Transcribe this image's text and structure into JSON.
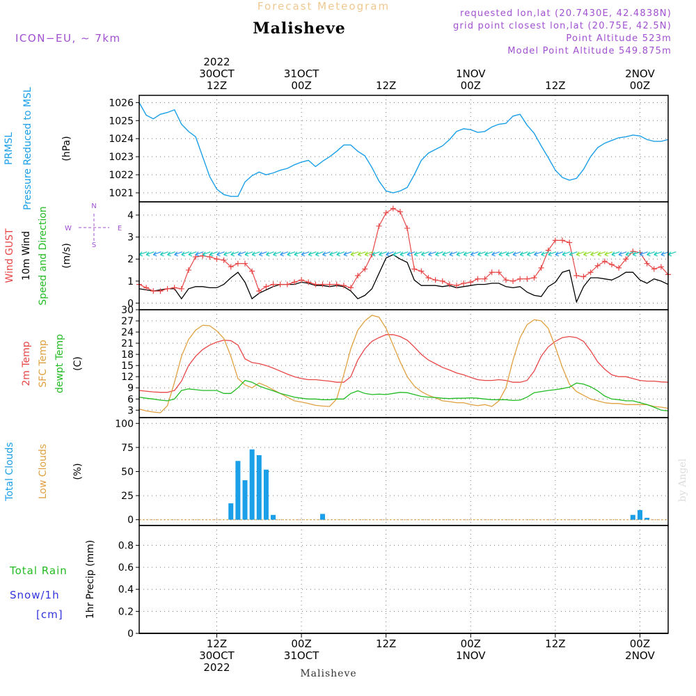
{
  "header": {
    "super_title": "Forecast Meteogram",
    "location": "Malisheve",
    "model": "ICON−EU, ∼ 7km",
    "requested": "requested lon,lat (20.7430E, 42.4838N)",
    "grid_point": "grid point closest lon,lat (20.75E, 42.5N)",
    "point_altitude": "Point Altitude 523m",
    "model_altitude": "Model Point Altitude 549.875m",
    "footer_location": "Malisheve",
    "credit": "by Angel"
  },
  "colors": {
    "pressure": "#1a9fe8",
    "gust": "#e84646",
    "wind": "#000000",
    "temp2m": "#e84646",
    "sfctemp": "#e0a040",
    "dewpt": "#22bb22",
    "clouds_total": "#1a9fe8",
    "clouds_low": "#e0a040",
    "rain": "#22bb22",
    "snow": "#3333dd",
    "meta": "#a050d0",
    "gridline": "#777777"
  },
  "time_axis": {
    "top_labels": [
      {
        "h": 12,
        "lines": [
          "2022",
          "30OCT",
          "12Z"
        ]
      },
      {
        "h": 24,
        "lines": [
          "31OCT",
          "00Z"
        ]
      },
      {
        "h": 36,
        "lines": [
          "12Z"
        ]
      },
      {
        "h": 48,
        "lines": [
          "1NOV",
          "00Z"
        ]
      },
      {
        "h": 60,
        "lines": [
          "12Z"
        ]
      },
      {
        "h": 72,
        "lines": [
          "2NOV",
          "00Z"
        ]
      }
    ],
    "bottom_labels": [
      {
        "h": 12,
        "lines": [
          "12Z",
          "30OCT",
          "2022"
        ]
      },
      {
        "h": 24,
        "lines": [
          "00Z",
          "31OCT"
        ]
      },
      {
        "h": 36,
        "lines": [
          "12Z"
        ]
      },
      {
        "h": 48,
        "lines": [
          "00Z",
          "1NOV"
        ]
      },
      {
        "h": 60,
        "lines": [
          "12Z"
        ]
      },
      {
        "h": 72,
        "lines": [
          "00Z",
          "2NOV"
        ]
      }
    ]
  },
  "panels": [
    {
      "id": "pressure",
      "labels": [
        {
          "text": "PRMSL",
          "color": "pressure"
        },
        {
          "text": "Pressure Reduced to MSL",
          "color": "pressure"
        },
        {
          "text": "(hPa)",
          "color": "wind"
        }
      ]
    },
    {
      "id": "wind",
      "labels": [
        {
          "text": "Wind GUST",
          "color": "gust"
        },
        {
          "text": "10m Wind",
          "color": "wind"
        },
        {
          "text": "Speed and Direction",
          "color": "dewpt"
        },
        {
          "text": "(m/s)",
          "color": "wind"
        }
      ],
      "compass": {
        "n": "N",
        "s": "S",
        "w": "W",
        "e": "E"
      }
    },
    {
      "id": "temp",
      "labels": [
        {
          "text": "2m Temp",
          "color": "temp2m"
        },
        {
          "text": "SFC Temp",
          "color": "sfctemp"
        },
        {
          "text": "dewpt Temp",
          "color": "dewpt"
        },
        {
          "text": "(C)",
          "color": "wind"
        }
      ]
    },
    {
      "id": "clouds",
      "labels": [
        {
          "text": "Total Clouds",
          "color": "clouds_total"
        },
        {
          "text": "Low Clouds",
          "color": "clouds_low"
        },
        {
          "text": "(%)",
          "color": "wind"
        }
      ]
    },
    {
      "id": "precip",
      "labels": [
        {
          "text": "1hr Precip (mm)",
          "color": "wind"
        }
      ],
      "legend": [
        {
          "text": "Total  Rain",
          "color": "rain"
        },
        {
          "text": "Snow/1h",
          "color": "snow"
        },
        {
          "text": "[cm]",
          "color": "snow"
        }
      ]
    }
  ],
  "chart_data": [
    {
      "type": "line",
      "name": "PRMSL",
      "x_unit": "hours from 30OCT 00Z",
      "xlim": [
        1,
        76
      ],
      "ylim": [
        1020.5,
        1026.4
      ],
      "yticks": [
        1021,
        1022,
        1023,
        1024,
        1025,
        1026
      ],
      "x": [
        1,
        2,
        3,
        4,
        5,
        6,
        7,
        8,
        9,
        10,
        11,
        12,
        13,
        14,
        15,
        16,
        17,
        18,
        19,
        20,
        21,
        22,
        23,
        24,
        25,
        26,
        27,
        28,
        29,
        30,
        31,
        32,
        33,
        34,
        35,
        36,
        37,
        38,
        39,
        40,
        41,
        42,
        43,
        44,
        45,
        46,
        47,
        48,
        49,
        50,
        51,
        52,
        53,
        54,
        55,
        56,
        57,
        58,
        59,
        60,
        61,
        62,
        63,
        64,
        65,
        66,
        67,
        68,
        69,
        70,
        71,
        72,
        73,
        74,
        75,
        76
      ],
      "series": [
        {
          "values": [
            1026.0,
            1025.3,
            1025.1,
            1025.35,
            1025.45,
            1025.6,
            1024.8,
            1024.4,
            1024.1,
            1023.0,
            1021.9,
            1021.2,
            1020.9,
            1020.8,
            1020.8,
            1021.6,
            1021.95,
            1022.15,
            1022.0,
            1022.1,
            1022.25,
            1022.35,
            1022.55,
            1022.7,
            1022.8,
            1022.45,
            1022.75,
            1023.0,
            1023.3,
            1023.65,
            1023.65,
            1023.3,
            1023.05,
            1022.4,
            1021.65,
            1021.1,
            1021.0,
            1021.1,
            1021.3,
            1022.0,
            1022.8,
            1023.2,
            1023.4,
            1023.6,
            1023.95,
            1024.4,
            1024.55,
            1024.5,
            1024.35,
            1024.4,
            1024.65,
            1024.8,
            1024.85,
            1025.25,
            1025.35,
            1024.75,
            1024.3,
            1023.6,
            1022.95,
            1022.25,
            1021.85,
            1021.7,
            1021.8,
            1022.3,
            1023.0,
            1023.5,
            1023.75,
            1023.9,
            1024.05,
            1024.1,
            1024.2,
            1024.15,
            1023.95,
            1023.85,
            1023.85,
            1023.95
          ]
        }
      ]
    },
    {
      "type": "line",
      "name": "Wind",
      "xlim": [
        1,
        76
      ],
      "ylim": [
        -0.3,
        4.6
      ],
      "yticks": [
        0,
        1,
        2,
        3,
        4
      ],
      "x": [
        1,
        2,
        3,
        4,
        5,
        6,
        7,
        8,
        9,
        10,
        11,
        12,
        13,
        14,
        15,
        16,
        17,
        18,
        19,
        20,
        21,
        22,
        23,
        24,
        25,
        26,
        27,
        28,
        29,
        30,
        31,
        32,
        33,
        34,
        35,
        36,
        37,
        38,
        39,
        40,
        41,
        42,
        43,
        44,
        45,
        46,
        47,
        48,
        49,
        50,
        51,
        52,
        53,
        54,
        55,
        56,
        57,
        58,
        59,
        60,
        61,
        62,
        63,
        64,
        65,
        66,
        67,
        68,
        69,
        70,
        71,
        72,
        73,
        74,
        75,
        76
      ],
      "series": [
        {
          "name": "Wind GUST",
          "values": [
            0.85,
            0.7,
            0.55,
            0.55,
            0.65,
            0.7,
            0.65,
            1.5,
            2.1,
            2.15,
            2.1,
            2.0,
            1.95,
            1.65,
            1.8,
            1.8,
            1.45,
            0.55,
            0.75,
            0.85,
            0.85,
            0.85,
            0.95,
            1.05,
            0.95,
            0.85,
            0.85,
            0.85,
            0.85,
            0.8,
            0.7,
            1.25,
            1.55,
            2.2,
            3.5,
            4.1,
            4.3,
            4.15,
            3.4,
            1.55,
            1.45,
            1.15,
            1.05,
            1.0,
            0.85,
            0.8,
            0.9,
            0.95,
            1.1,
            1.1,
            1.4,
            1.4,
            1.05,
            1.0,
            1.1,
            1.1,
            1.15,
            1.6,
            2.4,
            2.85,
            2.85,
            2.75,
            1.25,
            1.2,
            1.4,
            1.7,
            1.9,
            1.75,
            1.6,
            2.0,
            2.35,
            2.3,
            1.8,
            1.55,
            1.65,
            1.3
          ]
        },
        {
          "name": "10m Wind",
          "values": [
            0.65,
            0.6,
            0.55,
            0.6,
            0.65,
            0.65,
            0.2,
            0.65,
            0.75,
            0.75,
            0.7,
            0.7,
            0.85,
            1.15,
            1.4,
            0.95,
            0.2,
            0.45,
            0.6,
            0.75,
            0.85,
            0.85,
            0.85,
            0.95,
            0.9,
            0.8,
            0.8,
            0.75,
            0.8,
            0.75,
            0.55,
            0.2,
            0.35,
            0.65,
            1.35,
            2.05,
            2.2,
            2.0,
            1.85,
            1.05,
            0.8,
            0.8,
            0.8,
            0.75,
            0.8,
            0.7,
            0.75,
            0.8,
            0.85,
            0.85,
            0.9,
            0.9,
            0.75,
            0.7,
            0.75,
            0.5,
            0.35,
            0.3,
            0.75,
            0.95,
            1.4,
            1.5,
            0.05,
            0.75,
            1.15,
            1.15,
            1.1,
            1.05,
            1.2,
            1.4,
            1.4,
            1.05,
            0.9,
            1.1,
            1.0,
            0.85
          ]
        }
      ]
    },
    {
      "type": "line",
      "name": "Temperature",
      "xlim": [
        1,
        76
      ],
      "ylim": [
        1,
        30
      ],
      "yticks": [
        3,
        6,
        9,
        12,
        15,
        18,
        21,
        24,
        27,
        30
      ],
      "x": [
        1,
        2,
        3,
        4,
        5,
        6,
        7,
        8,
        9,
        10,
        11,
        12,
        13,
        14,
        15,
        16,
        17,
        18,
        19,
        20,
        21,
        22,
        23,
        24,
        25,
        26,
        27,
        28,
        29,
        30,
        31,
        32,
        33,
        34,
        35,
        36,
        37,
        38,
        39,
        40,
        41,
        42,
        43,
        44,
        45,
        46,
        47,
        48,
        49,
        50,
        51,
        52,
        53,
        54,
        55,
        56,
        57,
        58,
        59,
        60,
        61,
        62,
        63,
        64,
        65,
        66,
        67,
        68,
        69,
        70,
        71,
        72,
        73,
        74,
        75,
        76
      ],
      "series": [
        {
          "name": "2m Temp",
          "values": [
            8.3,
            8.1,
            7.9,
            7.8,
            7.8,
            8.3,
            10.8,
            15.0,
            17.5,
            19.3,
            20.5,
            21.3,
            21.8,
            21.7,
            20.5,
            16.8,
            15.8,
            15.5,
            15.0,
            14.3,
            13.5,
            12.7,
            12.0,
            11.5,
            11.2,
            11.2,
            11.0,
            10.8,
            10.5,
            10.5,
            12.0,
            16.5,
            19.5,
            21.5,
            22.5,
            23.3,
            23.3,
            22.8,
            21.8,
            20.0,
            18.0,
            16.5,
            15.5,
            14.5,
            13.8,
            13.0,
            12.5,
            11.8,
            11.2,
            11.0,
            11.0,
            11.2,
            11.0,
            10.5,
            10.5,
            11.0,
            13.5,
            17.5,
            20.0,
            21.5,
            22.5,
            22.8,
            22.5,
            21.5,
            19.0,
            16.0,
            14.0,
            12.5,
            12.0,
            12.0,
            11.5,
            11.0,
            10.8,
            10.8,
            10.6,
            10.5
          ]
        },
        {
          "name": "SFC Temp",
          "values": [
            3.3,
            2.8,
            2.5,
            2.3,
            4.2,
            10.5,
            17.5,
            22.0,
            24.5,
            25.8,
            25.7,
            24.3,
            22.3,
            17.5,
            11.5,
            9.8,
            9.0,
            10.3,
            9.5,
            8.5,
            7.5,
            6.5,
            5.5,
            5.2,
            4.8,
            4.3,
            4.1,
            4.0,
            6.0,
            12.5,
            19.5,
            24.5,
            27.0,
            28.5,
            28.0,
            25.0,
            20.5,
            16.0,
            12.0,
            9.5,
            8.0,
            7.0,
            6.3,
            5.5,
            5.3,
            5.0,
            5.0,
            4.5,
            4.2,
            4.5,
            4.0,
            5.5,
            9.0,
            16.5,
            22.5,
            26.0,
            27.3,
            27.0,
            25.0,
            20.0,
            14.5,
            10.0,
            8.0,
            7.0,
            6.0,
            5.5,
            5.0,
            4.8,
            4.8,
            4.5,
            4.5,
            4.5,
            4.5,
            4.0,
            3.8,
            3.5
          ]
        },
        {
          "name": "dewpt Temp",
          "values": [
            6.5,
            6.2,
            6.0,
            5.7,
            5.5,
            6.0,
            8.3,
            8.7,
            8.5,
            8.3,
            8.3,
            8.3,
            7.5,
            7.5,
            9.0,
            11.0,
            10.5,
            9.5,
            8.8,
            8.2,
            7.5,
            7.0,
            6.5,
            6.2,
            6.0,
            6.0,
            5.8,
            5.8,
            6.0,
            6.0,
            7.5,
            8.2,
            7.5,
            7.2,
            7.3,
            7.2,
            7.5,
            7.8,
            7.7,
            7.2,
            6.7,
            6.5,
            6.4,
            6.2,
            6.1,
            6.2,
            6.2,
            6.3,
            6.2,
            6.0,
            5.8,
            5.8,
            5.8,
            5.6,
            5.7,
            6.5,
            7.7,
            8.0,
            8.3,
            8.5,
            8.8,
            9.2,
            10.3,
            10.0,
            9.3,
            8.2,
            6.8,
            6.0,
            5.8,
            5.5,
            5.5,
            5.0,
            4.5,
            3.8,
            3.0,
            2.8
          ]
        }
      ]
    },
    {
      "type": "bar",
      "name": "Clouds",
      "xlim": [
        1,
        76
      ],
      "ylim": [
        -6,
        106
      ],
      "yticks": [
        0,
        25,
        50,
        75,
        100
      ],
      "series": [
        {
          "name": "Total Clouds",
          "x": [
            14,
            15,
            16,
            17,
            18,
            19,
            20,
            21,
            27,
            71,
            72,
            73
          ],
          "values": [
            17,
            61,
            41,
            73,
            67,
            52,
            5,
            0,
            6,
            5,
            10,
            2
          ]
        }
      ]
    },
    {
      "type": "bar",
      "name": "1hr Precip",
      "xlim": [
        1,
        76
      ],
      "ylim": [
        0,
        0.98
      ],
      "yticks": [
        0,
        0.2,
        0.4,
        0.6,
        0.8
      ],
      "series": [
        {
          "name": "Total Rain",
          "x": [],
          "values": []
        }
      ]
    }
  ]
}
